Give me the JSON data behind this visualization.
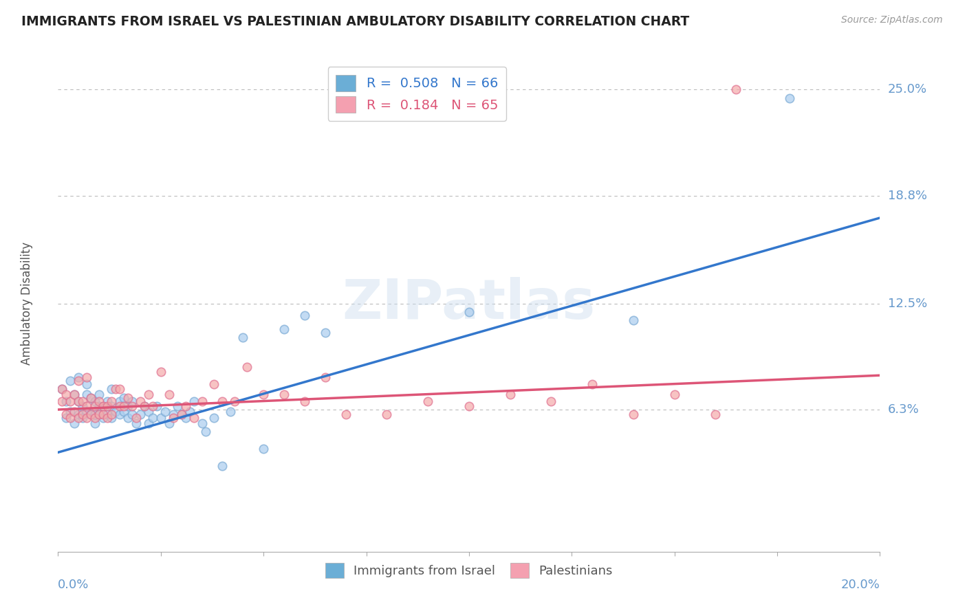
{
  "title": "IMMIGRANTS FROM ISRAEL VS PALESTINIAN AMBULATORY DISABILITY CORRELATION CHART",
  "source": "Source: ZipAtlas.com",
  "ylabel": "Ambulatory Disability",
  "xlim": [
    0.0,
    0.2
  ],
  "ylim": [
    -0.02,
    0.27
  ],
  "watermark": "ZIPatlas",
  "blue_scatter": [
    [
      0.001,
      0.075
    ],
    [
      0.002,
      0.068
    ],
    [
      0.002,
      0.058
    ],
    [
      0.003,
      0.062
    ],
    [
      0.003,
      0.08
    ],
    [
      0.004,
      0.055
    ],
    [
      0.004,
      0.072
    ],
    [
      0.005,
      0.06
    ],
    [
      0.005,
      0.068
    ],
    [
      0.005,
      0.082
    ],
    [
      0.006,
      0.058
    ],
    [
      0.006,
      0.065
    ],
    [
      0.007,
      0.062
    ],
    [
      0.007,
      0.072
    ],
    [
      0.007,
      0.078
    ],
    [
      0.008,
      0.06
    ],
    [
      0.008,
      0.07
    ],
    [
      0.009,
      0.055
    ],
    [
      0.009,
      0.06
    ],
    [
      0.009,
      0.068
    ],
    [
      0.01,
      0.06
    ],
    [
      0.01,
      0.065
    ],
    [
      0.01,
      0.072
    ],
    [
      0.011,
      0.058
    ],
    [
      0.011,
      0.065
    ],
    [
      0.012,
      0.06
    ],
    [
      0.012,
      0.068
    ],
    [
      0.013,
      0.058
    ],
    [
      0.013,
      0.065
    ],
    [
      0.013,
      0.075
    ],
    [
      0.014,
      0.062
    ],
    [
      0.015,
      0.06
    ],
    [
      0.015,
      0.068
    ],
    [
      0.016,
      0.062
    ],
    [
      0.016,
      0.07
    ],
    [
      0.017,
      0.058
    ],
    [
      0.017,
      0.065
    ],
    [
      0.018,
      0.06
    ],
    [
      0.018,
      0.068
    ],
    [
      0.019,
      0.055
    ],
    [
      0.02,
      0.06
    ],
    [
      0.021,
      0.065
    ],
    [
      0.022,
      0.055
    ],
    [
      0.022,
      0.062
    ],
    [
      0.023,
      0.058
    ],
    [
      0.024,
      0.065
    ],
    [
      0.025,
      0.058
    ],
    [
      0.026,
      0.062
    ],
    [
      0.027,
      0.055
    ],
    [
      0.028,
      0.06
    ],
    [
      0.029,
      0.065
    ],
    [
      0.03,
      0.06
    ],
    [
      0.031,
      0.058
    ],
    [
      0.032,
      0.062
    ],
    [
      0.033,
      0.068
    ],
    [
      0.035,
      0.055
    ],
    [
      0.036,
      0.05
    ],
    [
      0.038,
      0.058
    ],
    [
      0.04,
      0.03
    ],
    [
      0.042,
      0.062
    ],
    [
      0.045,
      0.105
    ],
    [
      0.05,
      0.04
    ],
    [
      0.055,
      0.11
    ],
    [
      0.06,
      0.118
    ],
    [
      0.065,
      0.108
    ],
    [
      0.1,
      0.12
    ],
    [
      0.14,
      0.115
    ],
    [
      0.178,
      0.245
    ]
  ],
  "pink_scatter": [
    [
      0.001,
      0.068
    ],
    [
      0.001,
      0.075
    ],
    [
      0.002,
      0.06
    ],
    [
      0.002,
      0.072
    ],
    [
      0.003,
      0.058
    ],
    [
      0.003,
      0.068
    ],
    [
      0.004,
      0.062
    ],
    [
      0.004,
      0.072
    ],
    [
      0.005,
      0.058
    ],
    [
      0.005,
      0.068
    ],
    [
      0.005,
      0.08
    ],
    [
      0.006,
      0.06
    ],
    [
      0.006,
      0.068
    ],
    [
      0.007,
      0.058
    ],
    [
      0.007,
      0.065
    ],
    [
      0.007,
      0.082
    ],
    [
      0.008,
      0.06
    ],
    [
      0.008,
      0.07
    ],
    [
      0.009,
      0.058
    ],
    [
      0.009,
      0.065
    ],
    [
      0.01,
      0.06
    ],
    [
      0.01,
      0.068
    ],
    [
      0.011,
      0.06
    ],
    [
      0.011,
      0.065
    ],
    [
      0.012,
      0.058
    ],
    [
      0.012,
      0.065
    ],
    [
      0.013,
      0.06
    ],
    [
      0.013,
      0.068
    ],
    [
      0.014,
      0.075
    ],
    [
      0.015,
      0.065
    ],
    [
      0.015,
      0.075
    ],
    [
      0.016,
      0.065
    ],
    [
      0.017,
      0.07
    ],
    [
      0.018,
      0.065
    ],
    [
      0.019,
      0.058
    ],
    [
      0.02,
      0.068
    ],
    [
      0.021,
      0.065
    ],
    [
      0.022,
      0.072
    ],
    [
      0.023,
      0.065
    ],
    [
      0.025,
      0.085
    ],
    [
      0.027,
      0.072
    ],
    [
      0.028,
      0.058
    ],
    [
      0.03,
      0.06
    ],
    [
      0.031,
      0.065
    ],
    [
      0.033,
      0.058
    ],
    [
      0.035,
      0.068
    ],
    [
      0.038,
      0.078
    ],
    [
      0.04,
      0.068
    ],
    [
      0.043,
      0.068
    ],
    [
      0.046,
      0.088
    ],
    [
      0.05,
      0.072
    ],
    [
      0.055,
      0.072
    ],
    [
      0.06,
      0.068
    ],
    [
      0.065,
      0.082
    ],
    [
      0.07,
      0.06
    ],
    [
      0.08,
      0.06
    ],
    [
      0.09,
      0.068
    ],
    [
      0.1,
      0.065
    ],
    [
      0.11,
      0.072
    ],
    [
      0.12,
      0.068
    ],
    [
      0.13,
      0.078
    ],
    [
      0.14,
      0.06
    ],
    [
      0.15,
      0.072
    ],
    [
      0.16,
      0.06
    ],
    [
      0.165,
      0.25
    ]
  ],
  "blue_line_x": [
    0.0,
    0.2
  ],
  "blue_line_y": [
    0.038,
    0.175
  ],
  "pink_line_x": [
    0.0,
    0.2
  ],
  "pink_line_y": [
    0.063,
    0.083
  ],
  "scatter_size": 80,
  "blue_color": "#aaccee",
  "pink_color": "#f4aaaa",
  "blue_edge_color": "#7aaad4",
  "pink_edge_color": "#e07090",
  "blue_line_color": "#3377cc",
  "pink_line_color": "#dd5577",
  "background_color": "#ffffff",
  "grid_color": "#bbbbbb",
  "title_color": "#222222",
  "axis_label_color": "#6699cc",
  "right_label_color": "#6699cc",
  "legend_blue_color": "#6baed6",
  "legend_pink_color": "#f4a0b0",
  "ytick_vals": [
    0.063,
    0.125,
    0.188,
    0.25
  ],
  "ytick_labels": [
    "6.3%",
    "12.5%",
    "18.8%",
    "25.0%"
  ]
}
